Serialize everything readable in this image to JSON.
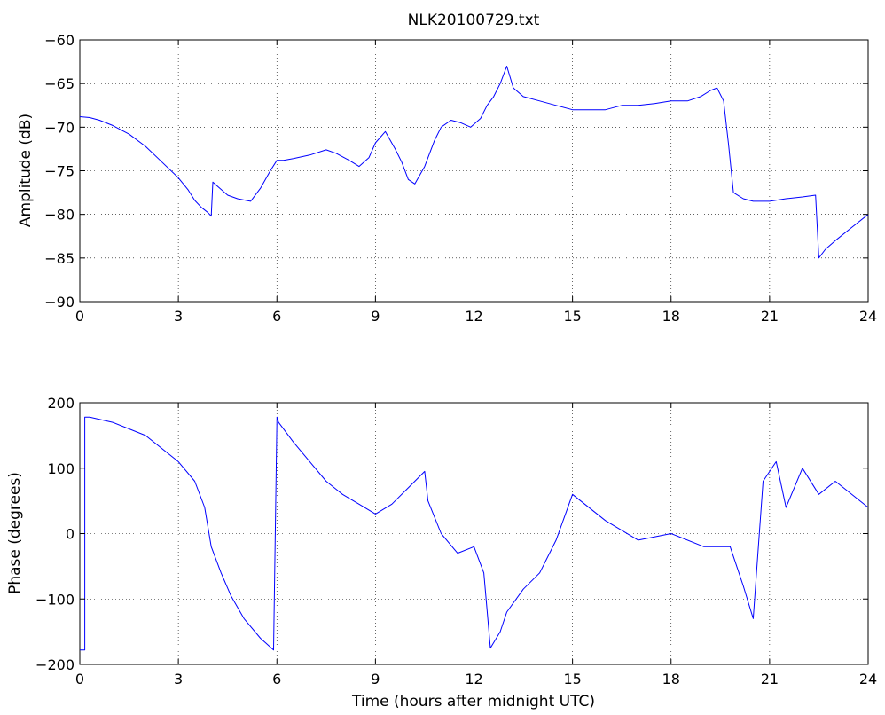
{
  "chart_data": [
    {
      "type": "line",
      "title": "NLK20100729.txt",
      "xlabel": "",
      "ylabel": "Amplitude (dB)",
      "xlim": [
        0,
        24
      ],
      "ylim": [
        -90,
        -60
      ],
      "xticks": [
        "0",
        "3",
        "6",
        "9",
        "12",
        "15",
        "18",
        "21",
        "24"
      ],
      "yticks": [
        "-60",
        "-65",
        "-70",
        "-75",
        "-80",
        "-85",
        "-90"
      ],
      "grid": true,
      "color": "#0000ff",
      "series": [
        {
          "x": [
            0,
            0.3,
            0.6,
            1.0,
            1.5,
            2.0,
            2.5,
            3.0,
            3.3,
            3.5,
            3.7,
            3.9,
            4.0,
            4.05,
            4.2,
            4.5,
            4.8,
            5.2,
            5.5,
            5.8,
            6.0,
            6.2,
            6.5,
            7.0,
            7.5,
            7.8,
            8.2,
            8.5,
            8.8,
            9.0,
            9.3,
            9.6,
            9.8,
            10.0,
            10.2,
            10.5,
            10.8,
            11.0,
            11.3,
            11.6,
            11.9,
            12.2,
            12.4,
            12.6,
            12.8,
            13.0,
            13.2,
            13.5,
            14.0,
            14.5,
            15.0,
            15.5,
            16.0,
            16.5,
            17.0,
            17.5,
            18.0,
            18.5,
            18.9,
            19.2,
            19.4,
            19.6,
            19.75,
            19.9,
            20.2,
            20.5,
            21.0,
            21.5,
            22.0,
            22.4,
            22.5,
            22.7,
            23.0,
            23.5,
            24.0
          ],
          "y": [
            -68.8,
            -68.9,
            -69.2,
            -69.8,
            -70.8,
            -72.2,
            -74.0,
            -75.8,
            -77.2,
            -78.4,
            -79.2,
            -79.8,
            -80.2,
            -76.3,
            -76.8,
            -77.8,
            -78.2,
            -78.5,
            -77.0,
            -75.0,
            -73.8,
            -73.8,
            -73.6,
            -73.2,
            -72.6,
            -73.0,
            -73.8,
            -74.5,
            -73.5,
            -71.8,
            -70.5,
            -72.5,
            -74.0,
            -76.0,
            -76.5,
            -74.5,
            -71.5,
            -70.0,
            -69.2,
            -69.5,
            -70.0,
            -69.0,
            -67.5,
            -66.5,
            -65.0,
            -63.0,
            -65.5,
            -66.5,
            -67.0,
            -67.5,
            -68.0,
            -68.0,
            -68.0,
            -67.5,
            -67.5,
            -67.3,
            -67.0,
            -67.0,
            -66.5,
            -65.8,
            -65.5,
            -67.0,
            -72.0,
            -77.5,
            -78.2,
            -78.5,
            -78.5,
            -78.2,
            -78.0,
            -77.8,
            -85.0,
            -84.0,
            -83.0,
            -81.5,
            -80.0
          ]
        }
      ]
    },
    {
      "type": "line",
      "title": "",
      "xlabel": "Time (hours after midnight UTC)",
      "ylabel": "Phase (degrees)",
      "xlim": [
        0,
        24
      ],
      "ylim": [
        -200,
        200
      ],
      "xticks": [
        "0",
        "3",
        "6",
        "9",
        "12",
        "15",
        "18",
        "21",
        "24"
      ],
      "yticks": [
        "200",
        "100",
        "0",
        "-100",
        "-200"
      ],
      "grid": true,
      "color": "#0000ff",
      "series": [
        {
          "x": [
            0,
            0.15,
            0.15,
            0.3,
            0.3,
            1.0,
            2.0,
            3.0,
            3.5,
            3.8,
            4.0,
            4.3,
            4.6,
            5.0,
            5.5,
            5.9,
            6.0,
            6.05,
            6.5,
            7.0,
            7.5,
            8.0,
            8.5,
            9.0,
            9.5,
            10.0,
            10.5,
            10.6,
            11.0,
            11.5,
            12.0,
            12.3,
            12.5,
            12.8,
            13.0,
            13.5,
            14.0,
            14.5,
            15.0,
            16.0,
            17.0,
            18.0,
            19.0,
            19.8,
            20.2,
            20.5,
            20.8,
            21.2,
            21.5,
            22.0,
            22.5,
            23.0,
            24.0
          ],
          "y": [
            -178,
            -178,
            178,
            178,
            178,
            170,
            150,
            110,
            80,
            40,
            -20,
            -60,
            -95,
            -130,
            -160,
            -178,
            178,
            170,
            140,
            110,
            80,
            60,
            45,
            30,
            45,
            70,
            95,
            50,
            0,
            -30,
            -20,
            -60,
            -175,
            -150,
            -120,
            -85,
            -60,
            -10,
            60,
            20,
            -10,
            0,
            -20,
            -20,
            -80,
            -130,
            80,
            110,
            40,
            100,
            60,
            80,
            40
          ]
        }
      ]
    }
  ]
}
